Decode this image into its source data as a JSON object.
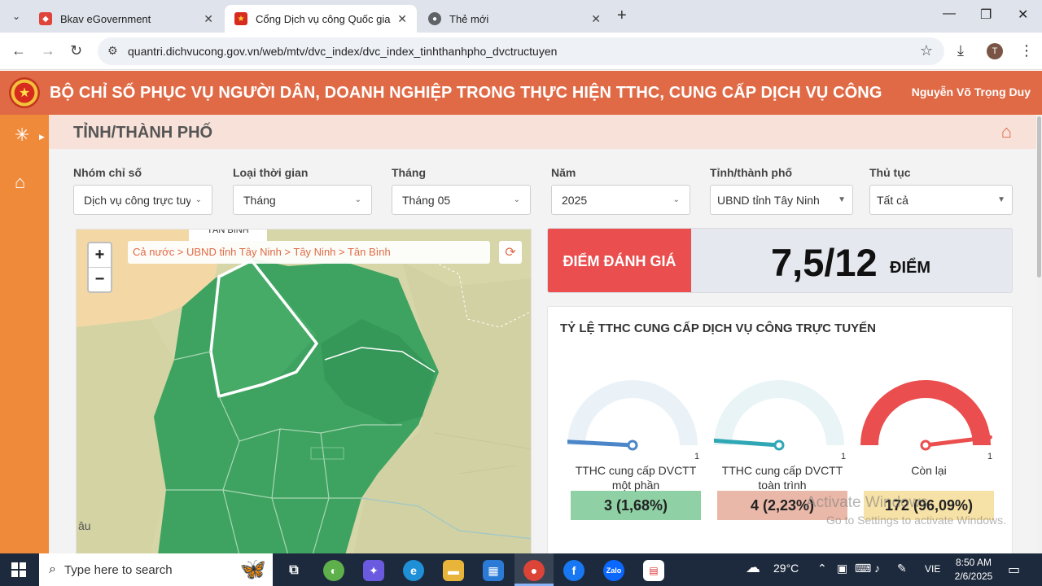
{
  "browser": {
    "tabs": [
      {
        "title": "Bkav eGovernment"
      },
      {
        "title": "Cổng Dịch vụ công Quốc gia"
      },
      {
        "title": "Thẻ mới"
      }
    ],
    "url": "quantri.dichvucong.gov.vn/web/mtv/dvc_index/dvc_index_tinhthanhpho_dvctructuyen",
    "profile_initial": "T"
  },
  "header": {
    "title": "BỘ CHỈ SỐ PHỤC VỤ NGƯỜI DÂN, DOANH NGHIỆP TRONG THỰC HIỆN TTHC, CUNG CẤP DỊCH VỤ CÔNG",
    "user": "Nguyễn Võ Trọng Duy",
    "color": "#e06a45"
  },
  "page": {
    "title": "TỈNH/THÀNH PHỐ"
  },
  "filters": [
    {
      "label": "Nhóm chỉ số",
      "value": "Dịch vụ công trực tuyế"
    },
    {
      "label": "Loại thời gian",
      "value": "Tháng"
    },
    {
      "label": "Tháng",
      "value": "Tháng 05"
    },
    {
      "label": "Năm",
      "value": "2025"
    },
    {
      "label": "Tỉnh/thành phố",
      "value": "UBND tỉnh Tây Ninh"
    },
    {
      "label": "Thủ tục",
      "value": "Tất cả"
    }
  ],
  "map": {
    "zoom_in": "+",
    "zoom_out": "−",
    "breadcrumb": "Cả nước > UBND tỉnh Tây Ninh > Tây Ninh > Tân Bình",
    "tooltip": "TÂN BÌNH",
    "side_label": "âu"
  },
  "score": {
    "label": "ĐIỂM ĐÁNH GIÁ",
    "value": "7,5/12",
    "unit": "ĐIỂM"
  },
  "ratio": {
    "title": "TỶ LỆ TTHC CUNG CẤP DỊCH VỤ CÔNG TRỰC TUYẾN",
    "gauges": [
      {
        "label": "TTHC cung cấp DVCTT một phần",
        "value": "3 (1,68%)",
        "fraction": 0.0168,
        "max_label": "1",
        "color": "#4a86c8",
        "track": "#eaf2f8",
        "badge": "#8fd1a4"
      },
      {
        "label": "TTHC cung cấp DVCTT toàn trình",
        "value": "4 (2,23%)",
        "fraction": 0.0223,
        "max_label": "1",
        "color": "#2fa7b5",
        "track": "#e8f4f6",
        "badge": "#eab8a8"
      },
      {
        "label": "Còn lại",
        "value": "172 (96,09%)",
        "fraction": 0.9609,
        "max_label": "1",
        "color": "#ea4e4e",
        "track": "#ea4e4e",
        "badge": "#f6e1a6"
      }
    ]
  },
  "watermark": {
    "line1": "Activate Windows",
    "line2": "Go to Settings to activate Windows."
  },
  "taskbar": {
    "search_placeholder": "Type here to search",
    "weather": "29°C",
    "lang": "VIE",
    "time": "8:50 AM",
    "date": "2/6/2025"
  }
}
